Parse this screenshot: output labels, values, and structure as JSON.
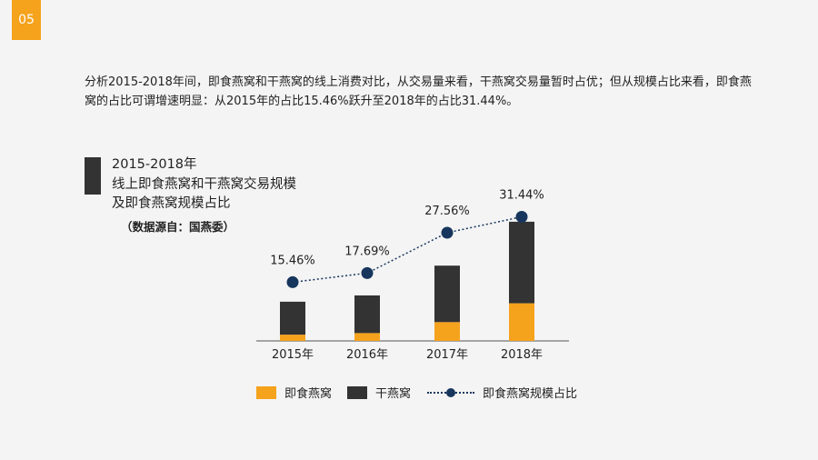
{
  "page_number": "05",
  "intro_text": "分析2015-2018年间，即食燕窝和干燕窝的线上消费对比，从交易量来看，干燕窝交易量暂时占优；但从规模占比来看，即食燕窝的占比可谓增速明显：从2015年的占比15.46%跃升至2018年的占比31.44%。",
  "chart_heading": {
    "line1": "2015-2018年",
    "line2": "线上即食燕窝和干燕窝交易规模",
    "line3": "及即食燕窝规模占比",
    "source": "（数据源自：国燕委）"
  },
  "colors": {
    "instant": "#f5a21c",
    "dried": "#333333",
    "line": "#17365d",
    "badge": "#f5a21c"
  },
  "chart_data": {
    "type": "bar",
    "stacked": true,
    "title": "2015-2018年 线上即食燕窝和干燕窝交易规模及即食燕窝规模占比",
    "categories": [
      "2015年",
      "2016年",
      "2017年",
      "2018年"
    ],
    "series": [
      {
        "name": "即食燕窝",
        "values": [
          2,
          2.5,
          6,
          12
        ]
      },
      {
        "name": "干燕窝",
        "values": [
          10.5,
          12,
          18,
          26
        ]
      }
    ],
    "line_series": {
      "name": "即食燕窝规模占比",
      "values": [
        15.46,
        17.69,
        27.56,
        31.44
      ],
      "labels": [
        "15.46%",
        "17.69%",
        "27.56%",
        "31.44%"
      ]
    },
    "xlabel": "",
    "ylabel": "",
    "grid": false,
    "legend": "bottom"
  }
}
